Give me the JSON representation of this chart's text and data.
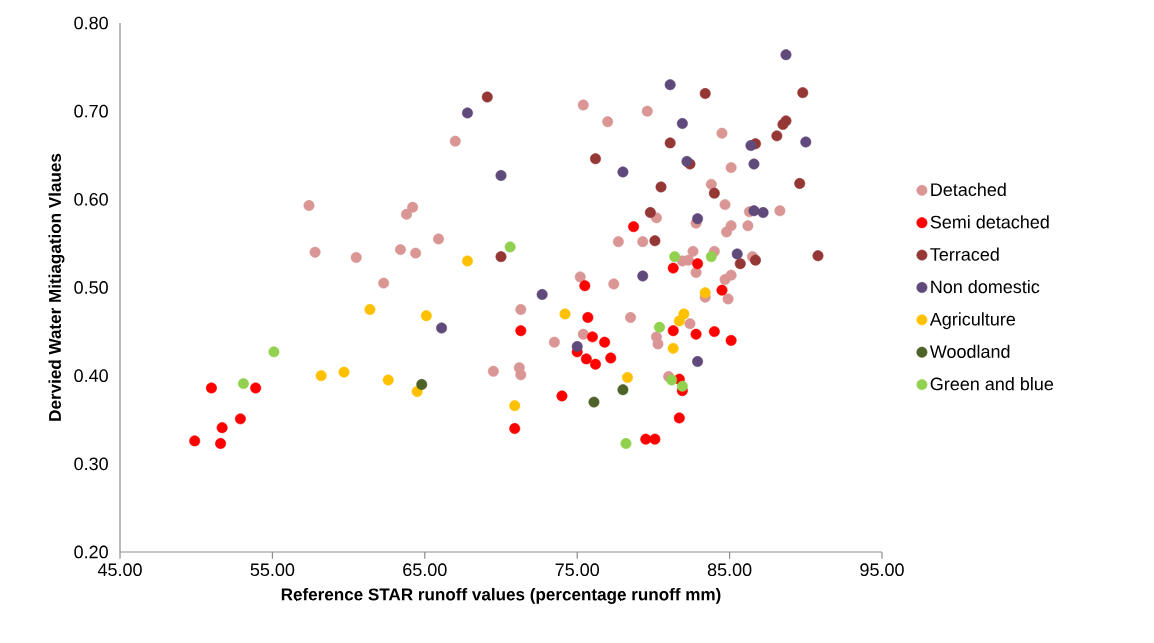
{
  "chart_data": {
    "type": "scatter",
    "xlabel": "Reference STAR runoff values (percentage runoff mm)",
    "ylabel": "Dervied Water Mitiagation Vlaues",
    "xlim": [
      45,
      95
    ],
    "ylim": [
      0.2,
      0.8
    ],
    "xticks": [
      {
        "value": 45,
        "label": "45.00"
      },
      {
        "value": 55,
        "label": "55.00"
      },
      {
        "value": 65,
        "label": "65.00"
      },
      {
        "value": 75,
        "label": "75.00"
      },
      {
        "value": 85,
        "label": "85.00"
      },
      {
        "value": 95,
        "label": "95.00"
      }
    ],
    "yticks": [
      {
        "value": 0.2,
        "label": "0.20"
      },
      {
        "value": 0.3,
        "label": "0.30"
      },
      {
        "value": 0.4,
        "label": "0.40"
      },
      {
        "value": 0.5,
        "label": "0.50"
      },
      {
        "value": 0.6,
        "label": "0.60"
      },
      {
        "value": 0.7,
        "label": "0.70"
      },
      {
        "value": 0.8,
        "label": "0.80"
      }
    ],
    "grid": false,
    "legend": "right",
    "marker": "circle",
    "series": [
      {
        "name": "Detached",
        "color": "#d99694",
        "x": [
          57.4,
          63.8,
          64.2,
          57.8,
          60.5,
          63.4,
          64.4,
          62.3,
          65.9,
          67.0,
          75.4,
          77.0,
          79.6,
          77.7,
          79.3,
          75.2,
          77.4,
          71.3,
          78.5,
          75.4,
          73.5,
          69.5,
          71.2,
          71.3,
          84.5,
          85.1,
          83.8,
          84.7,
          80.2,
          82.8,
          86.3,
          88.3,
          85.1,
          84.8,
          86.2,
          82.6,
          84.0,
          81.9,
          82.3,
          82.8,
          85.1,
          84.7,
          86.5,
          84.9,
          83.4,
          82.4,
          80.2,
          80.3,
          81.0
        ],
        "values": [
          0.593,
          0.583,
          0.591,
          0.54,
          0.534,
          0.543,
          0.539,
          0.505,
          0.555,
          0.666,
          0.707,
          0.688,
          0.7,
          0.552,
          0.552,
          0.512,
          0.504,
          0.475,
          0.466,
          0.447,
          0.438,
          0.405,
          0.409,
          0.401,
          0.675,
          0.636,
          0.617,
          0.594,
          0.579,
          0.573,
          0.586,
          0.587,
          0.57,
          0.563,
          0.57,
          0.541,
          0.541,
          0.53,
          0.531,
          0.517,
          0.514,
          0.509,
          0.535,
          0.487,
          0.489,
          0.459,
          0.444,
          0.436,
          0.399
        ]
      },
      {
        "name": "Semi detached",
        "color": "#ff0000",
        "x": [
          51.0,
          53.9,
          52.9,
          51.7,
          49.9,
          51.6,
          78.7,
          75.5,
          75.7,
          71.3,
          76.0,
          76.8,
          75.0,
          75.6,
          76.2,
          77.2,
          74.0,
          70.9,
          79.5,
          80.1,
          81.3,
          82.9,
          84.5,
          81.3,
          82.8,
          84.0,
          85.1,
          81.7,
          81.9,
          81.7
        ],
        "values": [
          0.386,
          0.386,
          0.351,
          0.341,
          0.326,
          0.323,
          0.569,
          0.502,
          0.466,
          0.451,
          0.444,
          0.438,
          0.427,
          0.419,
          0.413,
          0.42,
          0.377,
          0.34,
          0.328,
          0.328,
          0.522,
          0.527,
          0.497,
          0.451,
          0.447,
          0.45,
          0.44,
          0.396,
          0.383,
          0.352
        ]
      },
      {
        "name": "Terraced",
        "color": "#953735",
        "x": [
          69.1,
          76.2,
          70.0,
          83.4,
          81.1,
          80.5,
          79.8,
          80.1,
          82.4,
          84.0,
          86.7,
          88.1,
          88.5,
          88.7,
          89.8,
          89.6,
          90.8,
          85.7,
          86.7
        ],
        "values": [
          0.716,
          0.646,
          0.535,
          0.72,
          0.664,
          0.614,
          0.585,
          0.553,
          0.64,
          0.607,
          0.663,
          0.672,
          0.685,
          0.689,
          0.721,
          0.618,
          0.536,
          0.527,
          0.531
        ]
      },
      {
        "name": "Non domestic",
        "color": "#604a7b",
        "x": [
          67.8,
          70.0,
          79.3,
          72.7,
          66.1,
          75.0,
          88.7,
          81.1,
          81.9,
          86.4,
          90.0,
          82.2,
          86.6,
          86.6,
          87.2,
          82.9,
          85.5,
          82.9,
          78.0
        ],
        "values": [
          0.698,
          0.627,
          0.513,
          0.492,
          0.454,
          0.433,
          0.764,
          0.73,
          0.686,
          0.661,
          0.665,
          0.643,
          0.64,
          0.587,
          0.585,
          0.578,
          0.538,
          0.416,
          0.631
        ]
      },
      {
        "name": "Agriculture",
        "color": "#ffc000",
        "x": [
          61.4,
          65.1,
          58.2,
          59.7,
          62.6,
          64.5,
          67.8,
          74.2,
          70.9,
          83.4,
          82.0,
          81.7,
          81.3,
          78.3
        ],
        "values": [
          0.475,
          0.468,
          0.4,
          0.404,
          0.395,
          0.382,
          0.53,
          0.47,
          0.366,
          0.494,
          0.47,
          0.462,
          0.431,
          0.398
        ]
      },
      {
        "name": "Woodland",
        "color": "#4f6228",
        "x": [
          64.8,
          76.1,
          78.0
        ],
        "values": [
          0.39,
          0.37,
          0.384
        ]
      },
      {
        "name": "Green and blue",
        "color": "#92d050",
        "x": [
          55.1,
          53.1,
          70.6,
          78.2,
          81.4,
          83.8,
          80.4,
          81.2,
          81.9
        ],
        "values": [
          0.427,
          0.391,
          0.546,
          0.323,
          0.535,
          0.535,
          0.455,
          0.395,
          0.388
        ]
      }
    ]
  }
}
